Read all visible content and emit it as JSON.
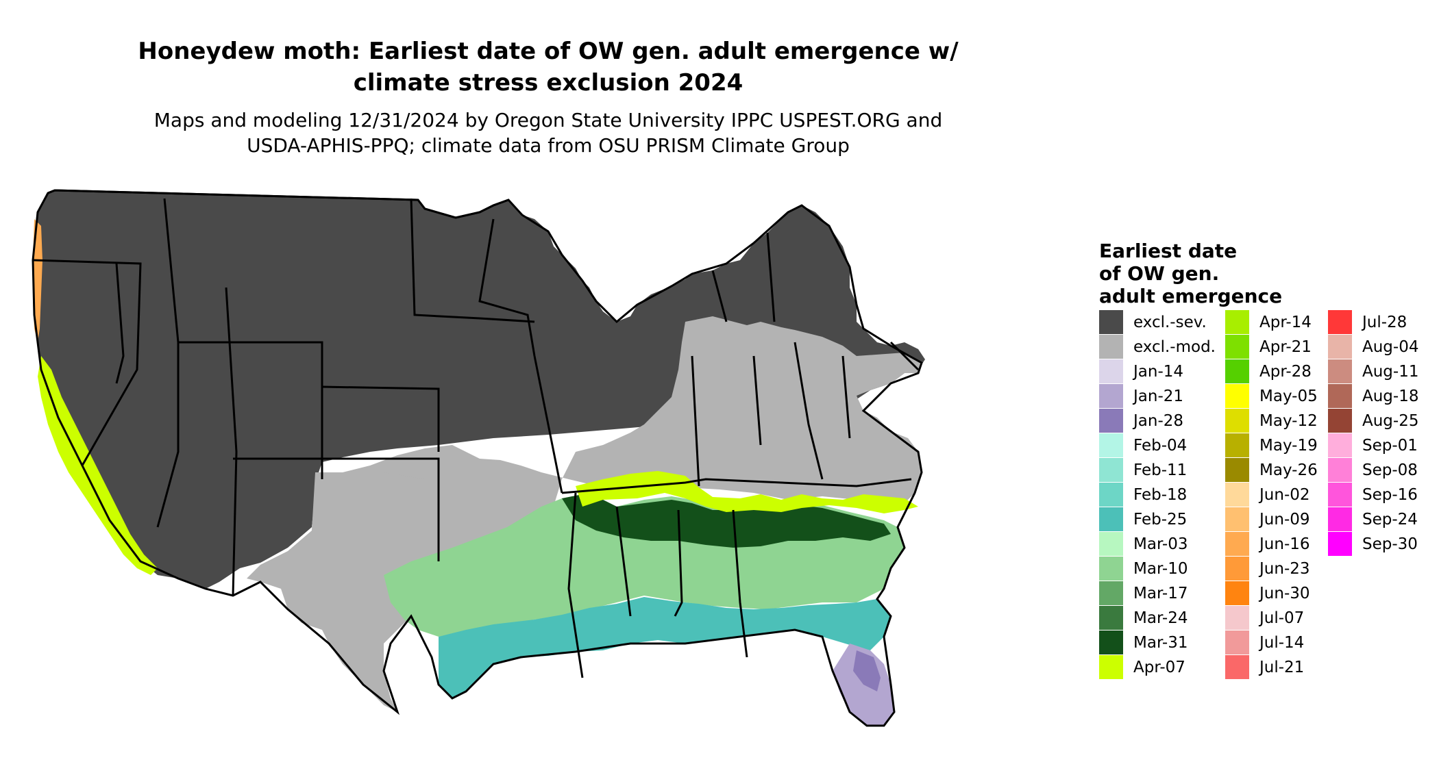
{
  "title_line1": "Honeydew moth: Earliest date of OW gen. adult emergence w/",
  "title_line2": "climate stress exclusion 2024",
  "subtitle_line1": "Maps and modeling 12/31/2024 by Oregon State University IPPC USPEST.ORG and",
  "subtitle_line2": "USDA-APHIS-PPQ; climate data from OSU PRISM Climate Group",
  "legend": {
    "title_line1": "Earliest date",
    "title_line2": "of OW gen.",
    "title_line3": "adult emergence",
    "columns": [
      [
        {
          "label": "excl.-sev.",
          "color": "#4a4a4a"
        },
        {
          "label": "excl.-mod.",
          "color": "#b3b3b3"
        },
        {
          "label": "Jan-14",
          "color": "#dcd5ea"
        },
        {
          "label": "Jan-21",
          "color": "#b3a6d0"
        },
        {
          "label": "Jan-28",
          "color": "#8a7ab8"
        },
        {
          "label": "Feb-04",
          "color": "#b3f5e6"
        },
        {
          "label": "Feb-11",
          "color": "#8fe5d3"
        },
        {
          "label": "Feb-18",
          "color": "#6dd6c6"
        },
        {
          "label": "Feb-25",
          "color": "#4cc0b8"
        },
        {
          "label": "Mar-03",
          "color": "#b7f7c0"
        },
        {
          "label": "Mar-10",
          "color": "#8fd492"
        },
        {
          "label": "Mar-17",
          "color": "#63a866"
        },
        {
          "label": "Mar-24",
          "color": "#3a7a3e"
        },
        {
          "label": "Mar-31",
          "color": "#13501a"
        },
        {
          "label": "Apr-07",
          "color": "#ccff00"
        }
      ],
      [
        {
          "label": "Apr-14",
          "color": "#a8ee00"
        },
        {
          "label": "Apr-21",
          "color": "#7ee000"
        },
        {
          "label": "Apr-28",
          "color": "#55d000"
        },
        {
          "label": "May-05",
          "color": "#ffff00"
        },
        {
          "label": "May-12",
          "color": "#dede00"
        },
        {
          "label": "May-19",
          "color": "#b8b000"
        },
        {
          "label": "May-26",
          "color": "#9a8a00"
        },
        {
          "label": "Jun-02",
          "color": "#ffd99a"
        },
        {
          "label": "Jun-09",
          "color": "#ffc070"
        },
        {
          "label": "Jun-16",
          "color": "#ffaa50"
        },
        {
          "label": "Jun-23",
          "color": "#ff9a38"
        },
        {
          "label": "Jun-30",
          "color": "#ff8410"
        },
        {
          "label": "Jul-07",
          "color": "#f5c8cc"
        },
        {
          "label": "Jul-14",
          "color": "#f19a9a"
        },
        {
          "label": "Jul-21",
          "color": "#fa6868"
        }
      ],
      [
        {
          "label": "Jul-28",
          "color": "#ff3838"
        },
        {
          "label": "Aug-04",
          "color": "#e8b4a8"
        },
        {
          "label": "Aug-11",
          "color": "#cc8c80"
        },
        {
          "label": "Aug-18",
          "color": "#b06858"
        },
        {
          "label": "Aug-25",
          "color": "#944434"
        },
        {
          "label": "Sep-01",
          "color": "#ffaedc"
        },
        {
          "label": "Sep-08",
          "color": "#ff80d8"
        },
        {
          "label": "Sep-16",
          "color": "#ff55dc"
        },
        {
          "label": "Sep-24",
          "color": "#ff2ae4"
        },
        {
          "label": "Sep-30",
          "color": "#ff00ff"
        }
      ]
    ]
  },
  "map_colors": {
    "excl_sev": "#4a4a4a",
    "excl_mod": "#b3b3b3",
    "border": "#000000"
  }
}
